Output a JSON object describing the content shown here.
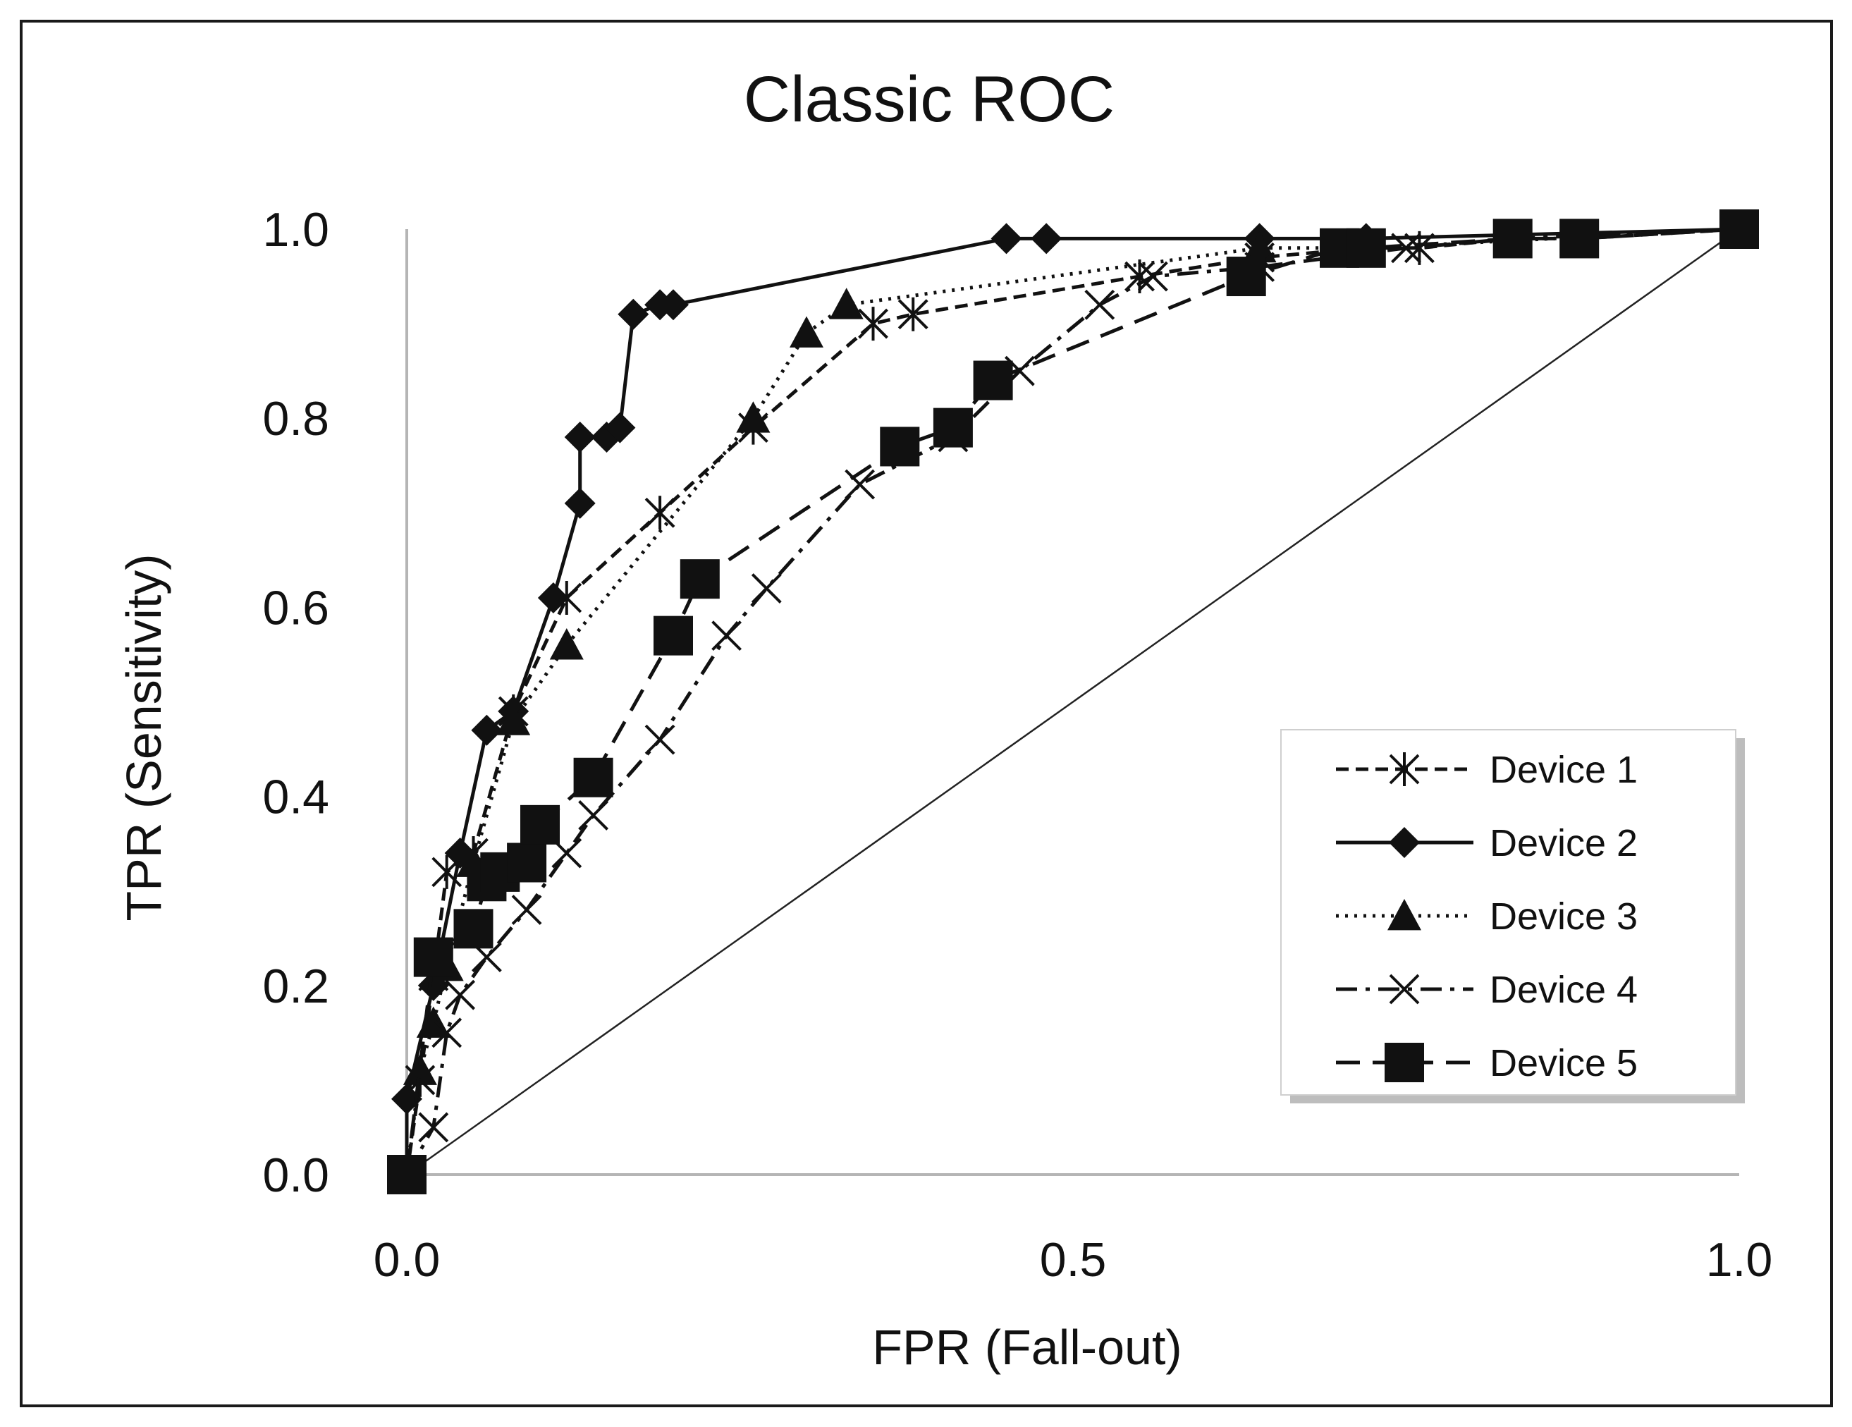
{
  "chart_data": {
    "type": "line",
    "title": "Classic ROC",
    "xlabel": "FPR (Fall-out)",
    "ylabel": "TPR (Sensitivity)",
    "xlim": [
      0,
      1
    ],
    "ylim": [
      0,
      1
    ],
    "xticks": [
      "0.0",
      "0.5",
      "1.0"
    ],
    "yticks": [
      "0.0",
      "0.2",
      "0.4",
      "0.6",
      "0.8",
      "1.0"
    ],
    "legend_position": "bottom-right",
    "grid": false,
    "reference_line": {
      "x": [
        0,
        1
      ],
      "y": [
        0,
        1
      ]
    },
    "series": [
      {
        "name": "Device 1",
        "line_style": "short-dash",
        "marker": "asterisk",
        "points": [
          [
            0,
            0
          ],
          [
            0.01,
            0.1
          ],
          [
            0.02,
            0.21
          ],
          [
            0.03,
            0.32
          ],
          [
            0.05,
            0.34
          ],
          [
            0.08,
            0.49
          ],
          [
            0.12,
            0.61
          ],
          [
            0.19,
            0.7
          ],
          [
            0.26,
            0.79
          ],
          [
            0.35,
            0.9
          ],
          [
            0.38,
            0.91
          ],
          [
            0.55,
            0.95
          ],
          [
            0.64,
            0.97
          ],
          [
            0.72,
            0.98
          ],
          [
            0.76,
            0.98
          ],
          [
            0.83,
            0.99
          ],
          [
            0.88,
            0.99
          ],
          [
            1,
            1
          ]
        ]
      },
      {
        "name": "Device 2",
        "line_style": "solid",
        "marker": "diamond",
        "points": [
          [
            0,
            0
          ],
          [
            0,
            0.08
          ],
          [
            0.02,
            0.2
          ],
          [
            0.04,
            0.34
          ],
          [
            0.06,
            0.47
          ],
          [
            0.08,
            0.49
          ],
          [
            0.11,
            0.61
          ],
          [
            0.13,
            0.71
          ],
          [
            0.13,
            0.78
          ],
          [
            0.15,
            0.78
          ],
          [
            0.16,
            0.79
          ],
          [
            0.17,
            0.91
          ],
          [
            0.19,
            0.92
          ],
          [
            0.2,
            0.92
          ],
          [
            0.45,
            0.99
          ],
          [
            0.48,
            0.99
          ],
          [
            0.64,
            0.99
          ],
          [
            0.72,
            0.99
          ],
          [
            1,
            1
          ]
        ]
      },
      {
        "name": "Device 3",
        "line_style": "dotted",
        "marker": "triangle",
        "points": [
          [
            0,
            0
          ],
          [
            0.01,
            0.11
          ],
          [
            0.02,
            0.16
          ],
          [
            0.03,
            0.22
          ],
          [
            0.05,
            0.33
          ],
          [
            0.08,
            0.48
          ],
          [
            0.12,
            0.56
          ],
          [
            0.26,
            0.8
          ],
          [
            0.3,
            0.89
          ],
          [
            0.33,
            0.92
          ],
          [
            0.64,
            0.98
          ],
          [
            0.72,
            0.98
          ],
          [
            1,
            1
          ]
        ]
      },
      {
        "name": "Device 4",
        "line_style": "dash-dot",
        "marker": "x",
        "points": [
          [
            0,
            0
          ],
          [
            0.02,
            0.05
          ],
          [
            0.03,
            0.15
          ],
          [
            0.04,
            0.19
          ],
          [
            0.06,
            0.23
          ],
          [
            0.09,
            0.28
          ],
          [
            0.12,
            0.34
          ],
          [
            0.14,
            0.38
          ],
          [
            0.19,
            0.46
          ],
          [
            0.24,
            0.57
          ],
          [
            0.27,
            0.62
          ],
          [
            0.34,
            0.73
          ],
          [
            0.41,
            0.78
          ],
          [
            0.46,
            0.85
          ],
          [
            0.52,
            0.92
          ],
          [
            0.56,
            0.95
          ],
          [
            0.64,
            0.96
          ],
          [
            0.75,
            0.98
          ],
          [
            0.83,
            0.99
          ],
          [
            1,
            1
          ]
        ]
      },
      {
        "name": "Device 5",
        "line_style": "long-dash",
        "marker": "square",
        "points": [
          [
            0,
            0
          ],
          [
            0.02,
            0.23
          ],
          [
            0.05,
            0.26
          ],
          [
            0.06,
            0.31
          ],
          [
            0.07,
            0.32
          ],
          [
            0.09,
            0.33
          ],
          [
            0.1,
            0.37
          ],
          [
            0.14,
            0.42
          ],
          [
            0.2,
            0.57
          ],
          [
            0.22,
            0.63
          ],
          [
            0.37,
            0.77
          ],
          [
            0.41,
            0.79
          ],
          [
            0.44,
            0.84
          ],
          [
            0.63,
            0.95
          ],
          [
            0.7,
            0.98
          ],
          [
            0.72,
            0.98
          ],
          [
            0.83,
            0.99
          ],
          [
            0.88,
            0.99
          ],
          [
            1,
            1
          ]
        ]
      }
    ]
  }
}
